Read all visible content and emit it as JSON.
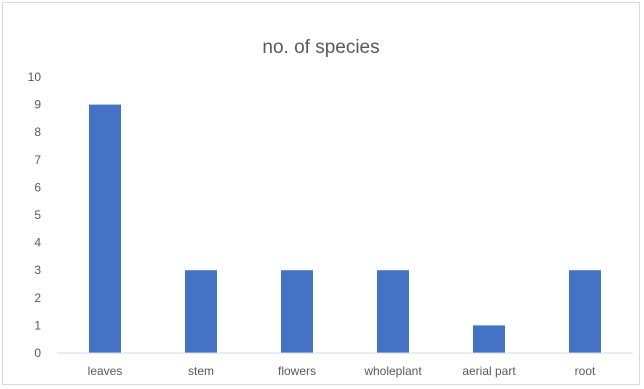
{
  "chart_data": {
    "type": "bar",
    "title": "no. of species",
    "categories": [
      "leaves",
      "stem",
      "flowers",
      "wholeplant",
      "aerial part",
      "root"
    ],
    "values": [
      9,
      3,
      3,
      3,
      1,
      3
    ],
    "ylim": [
      0,
      10
    ],
    "yticks": [
      "0",
      "1",
      "2",
      "3",
      "4",
      "5",
      "6",
      "7",
      "8",
      "9",
      "10"
    ],
    "grid": false,
    "legend": "none",
    "bar_color": "#4472C4",
    "axis_color": "#d9d9d9",
    "text_color": "#595959"
  }
}
